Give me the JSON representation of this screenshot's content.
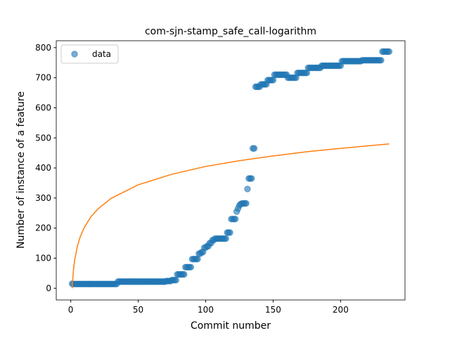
{
  "chart_data": {
    "type": "scatter",
    "title": "com-sjn-stamp_safe_call-logarithm",
    "xlabel": "Commit number",
    "ylabel": "Number of instance of a feature",
    "xlim": [
      -10.75,
      247.75
    ],
    "ylim": [
      -39,
      823
    ],
    "xticks": [
      0,
      50,
      100,
      150,
      200
    ],
    "yticks": [
      0,
      100,
      200,
      300,
      400,
      500,
      600,
      700,
      800
    ],
    "legend": "upper left",
    "series": [
      {
        "name": "data",
        "type": "scatter",
        "color": "#1f77b4",
        "x": [
          1,
          2,
          3,
          4,
          5,
          6,
          7,
          8,
          9,
          10,
          11,
          12,
          13,
          14,
          15,
          16,
          17,
          18,
          19,
          20,
          21,
          22,
          23,
          24,
          25,
          26,
          27,
          28,
          29,
          30,
          31,
          32,
          33,
          34,
          35,
          36,
          37,
          38,
          39,
          40,
          41,
          42,
          43,
          44,
          45,
          46,
          47,
          48,
          49,
          50,
          51,
          52,
          53,
          54,
          55,
          56,
          57,
          58,
          59,
          60,
          61,
          62,
          63,
          64,
          65,
          66,
          67,
          68,
          69,
          70,
          71,
          72,
          73,
          74,
          75,
          76,
          77,
          78,
          79,
          80,
          81,
          82,
          83,
          84,
          85,
          86,
          87,
          88,
          89,
          90,
          91,
          92,
          93,
          94,
          95,
          96,
          97,
          98,
          99,
          100,
          101,
          102,
          103,
          104,
          105,
          106,
          107,
          108,
          109,
          110,
          111,
          112,
          113,
          114,
          115,
          116,
          117,
          118,
          119,
          120,
          121,
          122,
          123,
          124,
          125,
          126,
          127,
          128,
          129,
          130,
          131,
          132,
          133,
          134,
          135,
          136,
          137,
          138,
          139,
          140,
          141,
          142,
          143,
          144,
          145,
          146,
          147,
          148,
          149,
          150,
          151,
          152,
          153,
          154,
          155,
          156,
          157,
          158,
          159,
          160,
          161,
          162,
          163,
          164,
          165,
          166,
          167,
          168,
          169,
          170,
          171,
          172,
          173,
          174,
          175,
          176,
          177,
          178,
          179,
          180,
          181,
          182,
          183,
          184,
          185,
          186,
          187,
          188,
          189,
          190,
          191,
          192,
          193,
          194,
          195,
          196,
          197,
          198,
          199,
          200,
          201,
          202,
          203,
          204,
          205,
          206,
          207,
          208,
          209,
          210,
          211,
          212,
          213,
          214,
          215,
          216,
          217,
          218,
          219,
          220,
          221,
          222,
          223,
          224,
          225,
          226,
          227,
          228,
          229,
          230,
          231,
          232,
          233,
          234,
          235,
          236
        ],
        "values": [
          15,
          14,
          14,
          14,
          14,
          14,
          14,
          14,
          14,
          14,
          14,
          14,
          14,
          14,
          14,
          14,
          14,
          14,
          14,
          14,
          14,
          14,
          14,
          14,
          14,
          14,
          14,
          14,
          14,
          14,
          14,
          14,
          14,
          14,
          22,
          22,
          22,
          22,
          22,
          22,
          22,
          22,
          22,
          22,
          22,
          22,
          22,
          22,
          22,
          22,
          22,
          22,
          22,
          22,
          22,
          22,
          22,
          22,
          22,
          22,
          22,
          22,
          22,
          22,
          22,
          22,
          22,
          22,
          22,
          22,
          24,
          24,
          24,
          24,
          27,
          27,
          27,
          27,
          46,
          46,
          46,
          46,
          46,
          46,
          70,
          70,
          70,
          70,
          70,
          97,
          97,
          97,
          97,
          97,
          115,
          115,
          120,
          120,
          135,
          135,
          140,
          140,
          150,
          150,
          160,
          160,
          165,
          165,
          165,
          165,
          165,
          165,
          165,
          165,
          165,
          185,
          185,
          185,
          230,
          230,
          230,
          230,
          255,
          265,
          275,
          280,
          282,
          282,
          282,
          282,
          330,
          365,
          365,
          365,
          465,
          465,
          670,
          670,
          670,
          670,
          678,
          678,
          678,
          678,
          678,
          692,
          692,
          692,
          692,
          692,
          710,
          710,
          710,
          710,
          710,
          710,
          710,
          710,
          710,
          710,
          700,
          700,
          700,
          700,
          700,
          700,
          700,
          716,
          716,
          716,
          716,
          716,
          716,
          716,
          716,
          733,
          733,
          733,
          733,
          733,
          733,
          733,
          733,
          733,
          733,
          740,
          740,
          740,
          740,
          740,
          740,
          740,
          740,
          740,
          740,
          740,
          740,
          740,
          740,
          740,
          755,
          755,
          755,
          755,
          755,
          755,
          755,
          755,
          755,
          755,
          755,
          755,
          755,
          755,
          755,
          758,
          758,
          758,
          758,
          758,
          758,
          758,
          758,
          758,
          758,
          758,
          758,
          758,
          758,
          758,
          787,
          787,
          787,
          787,
          787,
          787
        ]
      },
      {
        "type": "line",
        "color": "#ff7f0e",
        "x": [
          1,
          2,
          3,
          5,
          7,
          10,
          15,
          20,
          30,
          50,
          75,
          100,
          125,
          150,
          175,
          200,
          236
        ],
        "values": [
          0,
          61,
          96.5,
          141,
          171,
          202,
          238,
          263,
          299,
          344,
          379,
          405,
          424,
          440,
          454,
          465,
          480
        ]
      }
    ]
  }
}
